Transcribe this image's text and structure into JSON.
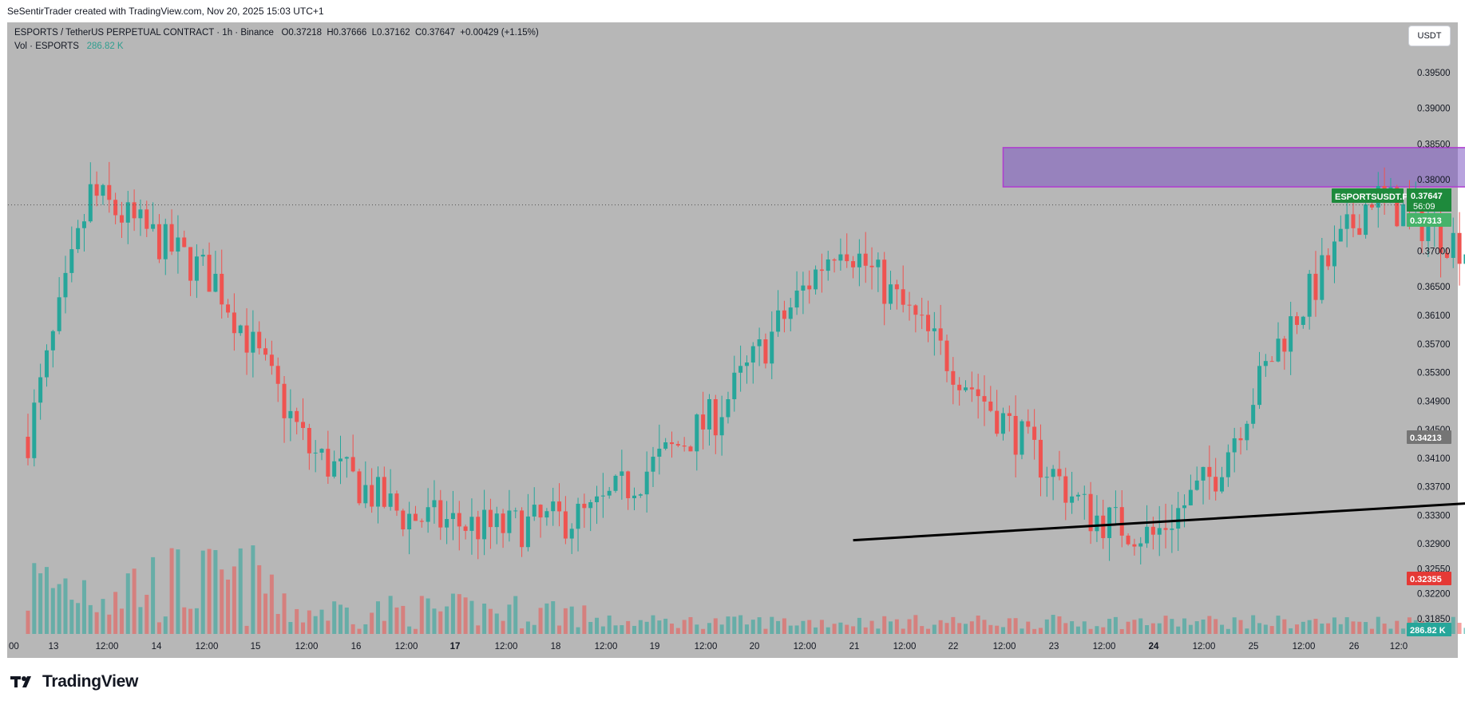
{
  "header": {
    "attribution": "SeSentirTrader created with TradingView.com, Nov 20, 2025 15:03 UTC+1"
  },
  "legend": {
    "symbol_line": "ESPORTS / TetherUS PERPETUAL CONTRACT · 1h · Binance",
    "open": "O0.37218",
    "high": "H0.37666",
    "low": "L0.37162",
    "close": "C0.37647",
    "change": "+0.00429 (+1.15%)",
    "volume_label": "Vol · ESPORTS",
    "volume_value": "286.82 K"
  },
  "toolbar": {
    "currency_label": "USDT"
  },
  "price_tags": {
    "symbol": "ESPORTSUSDT.P",
    "last_price": "0.37647",
    "countdown": "56:09",
    "target": "0.37313",
    "entry": "0.34213",
    "stop": "0.32355",
    "volume": "286.82 K"
  },
  "footer": {
    "brand": "TradingView"
  },
  "colors": {
    "up_candle": "#26a69a",
    "down_candle": "#ef5350",
    "profit_zone": "rgba(76,175,80,0.5)",
    "loss_zone": "rgba(242,54,69,0.35)",
    "supply_zone": "rgba(126,87,194,0.55)",
    "chart_background": "#b7b7b7"
  },
  "chart_data": {
    "type": "candlestick",
    "symbol": "ESPORTS / TetherUS PERPETUAL CONTRACT",
    "interval": "1h",
    "exchange": "Binance",
    "y_axis": {
      "ticks": [
        "0.39500",
        "0.39000",
        "0.38500",
        "0.38000",
        "0.37000",
        "0.36500",
        "0.36100",
        "0.35700",
        "0.35300",
        "0.34900",
        "0.34500",
        "0.34100",
        "0.33700",
        "0.33300",
        "0.32900",
        "0.32550",
        "0.32200",
        "0.31850"
      ],
      "ylim": [
        0.3165,
        0.4
      ]
    },
    "x_axis": {
      "ticks": [
        "00",
        "13",
        "12:00",
        "14",
        "12:00",
        "15",
        "12:00",
        "16",
        "12:00",
        "17",
        "12:00",
        "18",
        "12:00",
        "19",
        "12:00",
        "20",
        "12:00",
        "21",
        "12:00",
        "22",
        "12:00",
        "23",
        "12:00",
        "24",
        "12:00",
        "25",
        "12:00",
        "26",
        "12:0"
      ]
    },
    "close_trajectory": [
      [
        0,
        0.344
      ],
      [
        10,
        0.378
      ],
      [
        20,
        0.372
      ],
      [
        30,
        0.366
      ],
      [
        45,
        0.342
      ],
      [
        60,
        0.333
      ],
      [
        75,
        0.331
      ],
      [
        90,
        0.333
      ],
      [
        110,
        0.347
      ],
      [
        130,
        0.372
      ],
      [
        150,
        0.352
      ],
      [
        170,
        0.333
      ],
      [
        180,
        0.33
      ],
      [
        190,
        0.339
      ],
      [
        200,
        0.357
      ],
      [
        215,
        0.378
      ],
      [
        235,
        0.368
      ],
      [
        255,
        0.356
      ],
      [
        275,
        0.342
      ],
      [
        290,
        0.334
      ],
      [
        305,
        0.338
      ],
      [
        318,
        0.342
      ],
      [
        330,
        0.344
      ],
      [
        345,
        0.347
      ],
      [
        360,
        0.349
      ],
      [
        375,
        0.354
      ],
      [
        382,
        0.366
      ],
      [
        387,
        0.3765
      ]
    ],
    "volume_note": "Vol · ESPORTS 286.82 K",
    "drawings": {
      "supply_zone": {
        "top": 0.3845,
        "bottom": 0.379,
        "x_start": 156,
        "x_end": 550
      },
      "long_position": {
        "target": 0.37313,
        "entry": 0.34213,
        "stop": 0.32355,
        "x_start": 295,
        "x_end": 598
      },
      "trendline": {
        "from": [
          132,
          0.3295
        ],
        "to": [
          400,
          0.3436
        ]
      },
      "last_price_line": 0.37647
    }
  }
}
